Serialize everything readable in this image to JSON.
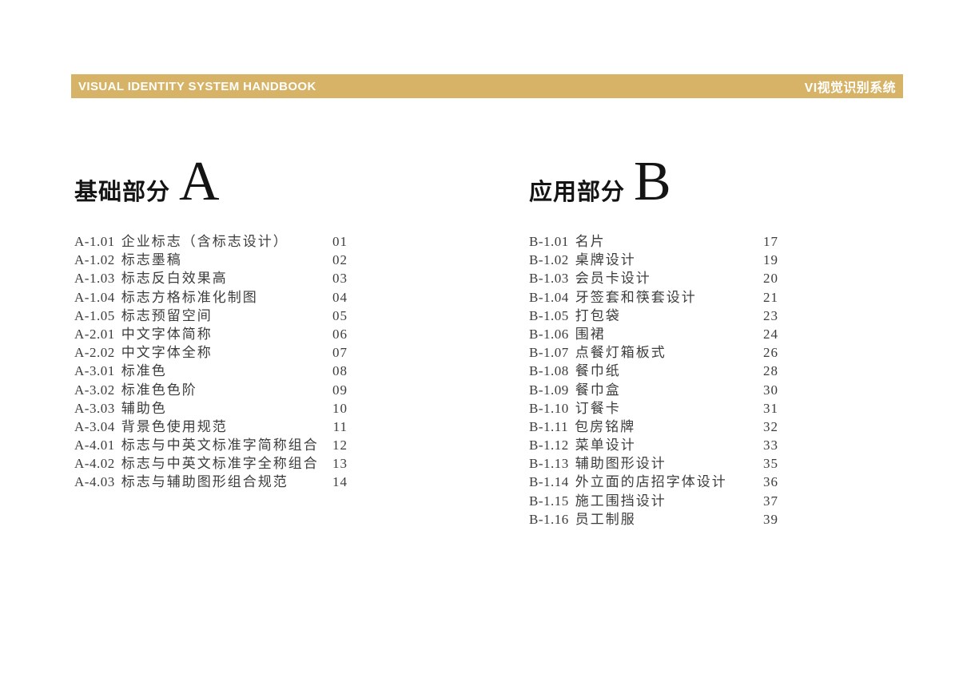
{
  "colors": {
    "accent_gold": "#d6b366",
    "header_text": "#ffffff",
    "body_text": "#3c3c3c",
    "heading_text": "#141414"
  },
  "header": {
    "title_en": "VISUAL IDENTITY SYSTEM HANDBOOK",
    "title_zh": "VI视觉识别系统"
  },
  "sections": [
    {
      "title": "基础部分",
      "letter": "A",
      "items": [
        {
          "code": "A-1.01",
          "label": "企业标志（含标志设计）",
          "page": "01"
        },
        {
          "code": "A-1.02",
          "label": "标志墨稿",
          "page": "02"
        },
        {
          "code": "A-1.03",
          "label": "标志反白效果高",
          "page": "03"
        },
        {
          "code": "A-1.04",
          "label": "标志方格标准化制图",
          "page": "04"
        },
        {
          "code": "A-1.05",
          "label": "标志预留空间",
          "page": "05"
        },
        {
          "code": "A-2.01",
          "label": "中文字体简称",
          "page": "06"
        },
        {
          "code": "A-2.02",
          "label": "中文字体全称",
          "page": "07"
        },
        {
          "code": "A-3.01",
          "label": "标准色",
          "page": "08"
        },
        {
          "code": "A-3.02",
          "label": "标准色色阶",
          "page": "09"
        },
        {
          "code": "A-3.03",
          "label": "辅助色",
          "page": "10"
        },
        {
          "code": "A-3.04",
          "label": "背景色使用规范",
          "page": "11"
        },
        {
          "code": "A-4.01",
          "label": "标志与中英文标准字简称组合",
          "page": "12"
        },
        {
          "code": "A-4.02",
          "label": "标志与中英文标准字全称组合",
          "page": "13"
        },
        {
          "code": "A-4.03",
          "label": "标志与辅助图形组合规范",
          "page": "14"
        }
      ]
    },
    {
      "title": "应用部分",
      "letter": "B",
      "items": [
        {
          "code": "B-1.01",
          "label": "名片",
          "page": "17"
        },
        {
          "code": "B-1.02",
          "label": "桌牌设计",
          "page": "19"
        },
        {
          "code": "B-1.03",
          "label": "会员卡设计",
          "page": "20"
        },
        {
          "code": "B-1.04",
          "label": "牙签套和筷套设计",
          "page": "21"
        },
        {
          "code": "B-1.05",
          "label": "打包袋",
          "page": "23"
        },
        {
          "code": "B-1.06",
          "label": "围裙",
          "page": "24"
        },
        {
          "code": "B-1.07",
          "label": "点餐灯箱板式",
          "page": "26"
        },
        {
          "code": "B-1.08",
          "label": "餐巾纸",
          "page": "28"
        },
        {
          "code": "B-1.09",
          "label": "餐巾盒",
          "page": "30"
        },
        {
          "code": "B-1.10",
          "label": "订餐卡",
          "page": "31"
        },
        {
          "code": "B-1.11",
          "label": "包房铭牌",
          "page": "32"
        },
        {
          "code": "B-1.12",
          "label": "菜单设计",
          "page": "33"
        },
        {
          "code": "B-1.13",
          "label": "辅助图形设计",
          "page": "35"
        },
        {
          "code": "B-1.14",
          "label": "外立面的店招字体设计",
          "page": "36"
        },
        {
          "code": "B-1.15",
          "label": "施工围挡设计",
          "page": "37"
        },
        {
          "code": "B-1.16",
          "label": "员工制服",
          "page": "39"
        }
      ]
    }
  ]
}
